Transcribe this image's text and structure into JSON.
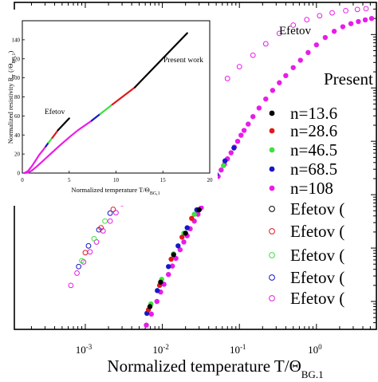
{
  "chart_data": [
    {
      "type": "scatter",
      "panel": "main",
      "xlabel": "Normalized temperature T/Θ",
      "xlabel_sub": "BG,1",
      "x_scale": "log",
      "xlim": [
        0.00012,
        6
      ],
      "y_scale": "log",
      "ylim": [
        3e-05,
        40
      ],
      "x_ticks": [
        0.001,
        0.01,
        0.1,
        1
      ],
      "x_tick_labels": [
        {
          "base": "10",
          "exp": "-3"
        },
        {
          "base": "10",
          "exp": "-2"
        },
        {
          "base": "10",
          "exp": "-1"
        },
        {
          "base": "10",
          "exp": "0"
        }
      ],
      "annotation": "Efetov",
      "legend": {
        "title": "Present",
        "placement": "right",
        "entries": [
          {
            "label": "n=13.6",
            "color": "#000000",
            "filled": true
          },
          {
            "label": "n=28.6",
            "color": "#e0191c",
            "filled": true
          },
          {
            "label": "n=46.5",
            "color": "#3fe03f",
            "filled": true
          },
          {
            "label": "n=68.5",
            "color": "#1717c8",
            "filled": true
          },
          {
            "label": "n=108",
            "color": "#e81ce8",
            "filled": true
          },
          {
            "label": "Efetov (",
            "color": "#000000",
            "filled": false
          },
          {
            "label": "Efetov (",
            "color": "#e0191c",
            "filled": false
          },
          {
            "label": "Efetov (",
            "color": "#3fe03f",
            "filled": false
          },
          {
            "label": "Efetov (",
            "color": "#1717c8",
            "filled": false
          },
          {
            "label": "Efetov (",
            "color": "#e81ce8",
            "filled": false
          }
        ]
      },
      "series": [
        {
          "name": "n=108",
          "color": "#e81ce8",
          "style": "filled",
          "x": [
            0.0062,
            0.0072,
            0.0085,
            0.0095,
            0.0105,
            0.012,
            0.0135,
            0.015,
            0.017,
            0.019,
            0.021,
            0.023,
            0.026,
            0.029,
            0.032,
            0.035,
            0.039,
            0.043,
            0.048,
            0.053,
            0.058,
            0.064,
            0.07,
            0.078,
            0.086,
            0.095,
            0.105,
            0.115,
            0.13,
            0.15,
            0.18,
            0.22,
            0.27,
            0.33,
            0.4,
            0.5,
            0.62,
            0.78,
            1.0,
            1.3,
            1.7,
            2.2,
            2.8,
            3.5,
            4.3,
            5.2
          ],
          "y": [
            3.6e-05,
            5.8e-05,
            0.0001,
            0.00015,
            0.00021,
            0.00032,
            0.00046,
            0.00064,
            0.00093,
            0.0013,
            0.0017,
            0.0023,
            0.0032,
            0.0043,
            0.0057,
            0.0073,
            0.0098,
            0.013,
            0.017,
            0.022,
            0.029,
            0.037,
            0.047,
            0.061,
            0.078,
            0.1,
            0.13,
            0.16,
            0.21,
            0.29,
            0.42,
            0.62,
            0.9,
            1.25,
            1.7,
            2.4,
            3.3,
            4.6,
            6.4,
            8.8,
            11.5,
            14.0,
            16.0,
            17.5,
            18.8,
            20.0
          ]
        },
        {
          "name": "n=68.5",
          "color": "#1717c8",
          "style": "filled",
          "x": [
            0.0063,
            0.0086,
            0.012,
            0.016,
            0.021,
            0.028,
            0.037,
            0.05,
            0.065,
            0.085
          ],
          "y": [
            6e-05,
            0.00016,
            0.00045,
            0.0011,
            0.0024,
            0.0052,
            0.011,
            0.024,
            0.043,
            0.075
          ]
        },
        {
          "name": "n=46.5",
          "color": "#3fe03f",
          "style": "filled",
          "x": [
            0.0071,
            0.0098,
            0.014,
            0.019,
            0.026,
            0.034,
            0.046,
            0.062
          ],
          "y": [
            9e-05,
            0.00026,
            0.00078,
            0.0019,
            0.0043,
            0.0085,
            0.018,
            0.035
          ]
        },
        {
          "name": "n=28.6",
          "color": "#e0191c",
          "style": "filled",
          "x": [
            0.0066,
            0.0092,
            0.013,
            0.018,
            0.024,
            0.032,
            0.043
          ],
          "y": [
            7e-05,
            0.0002,
            0.00062,
            0.0016,
            0.0036,
            0.0074,
            0.015
          ]
        },
        {
          "name": "n=13.6",
          "color": "#000000",
          "style": "filled",
          "x": [
            0.0069,
            0.0095,
            0.014,
            0.02,
            0.03,
            0.045
          ],
          "y": [
            8e-05,
            0.00023,
            0.00075,
            0.0019,
            0.0052,
            0.0155
          ]
        },
        {
          "name": "Efetov (",
          "color": "#e81ce8",
          "style": "hollow",
          "x": [
            0.00065,
            0.00078,
            0.00095,
            0.00115,
            0.0014,
            0.0017,
            0.0021,
            0.0025,
            0.003,
            0.0036,
            0.0044,
            0.006,
            0.009,
            0.014,
            0.02,
            0.03,
            0.045,
            0.07,
            0.1,
            0.15,
            0.22,
            0.33,
            0.5,
            0.75,
            1.1,
            1.6,
            2.4,
            3.4,
            4.4
          ],
          "y": [
            0.0002,
            0.00034,
            0.00055,
            0.00085,
            0.0013,
            0.0021,
            0.0032,
            0.0046,
            0.0068,
            0.0098,
            0.014,
            0.024,
            0.055,
            0.12,
            0.22,
            0.42,
            0.78,
            1.5,
            2.5,
            4.1,
            6.7,
            10.5,
            15.0,
            19.0,
            22.5,
            25.5,
            28.0,
            29.5,
            30.5
          ]
        },
        {
          "name": "Efetov (",
          "color": "#1717c8",
          "style": "hollow",
          "x": [
            0.00082,
            0.0011,
            0.0015,
            0.0021
          ],
          "y": [
            0.00045,
            0.0011,
            0.0022,
            0.0045
          ]
        },
        {
          "name": "Efetov (",
          "color": "#3fe03f",
          "style": "hollow",
          "x": [
            0.0009,
            0.0013,
            0.0018
          ],
          "y": [
            0.00058,
            0.0015,
            0.0032
          ]
        },
        {
          "name": "Efetov (",
          "color": "#e0191c",
          "style": "hollow",
          "x": [
            0.001,
            0.0016,
            0.0023
          ],
          "y": [
            0.00082,
            0.0024,
            0.0053
          ]
        },
        {
          "name": "Efetov (",
          "color": "#000000",
          "style": "hollow",
          "x": [
            0.0027,
            0.0032,
            0.0038
          ],
          "y": [
            0.0078,
            0.011,
            0.016
          ]
        }
      ]
    },
    {
      "type": "line",
      "panel": "inset",
      "xlabel": "Normalized temperature T/Θ",
      "xlabel_sub": "BG,1",
      "ylabel": "Normalized resistivity R",
      "ylabel_sub": "T",
      "ylabel_tail": "/Θ",
      "ylabel_tail_sub": "BG,1",
      "ylabel_end": ")",
      "xlim": [
        0,
        20
      ],
      "ylim": [
        0,
        160
      ],
      "x_ticks": [
        0,
        5,
        10,
        15,
        20
      ],
      "y_ticks": [
        0,
        20,
        40,
        60,
        80,
        100,
        120,
        140
      ],
      "tick_labels_x": [
        "0",
        "5",
        "10",
        "15",
        "20"
      ],
      "tick_labels_y": [
        "0",
        "20",
        "40",
        "60",
        "80",
        "100",
        "120",
        "140"
      ],
      "annotations": [
        "Efetov",
        "Present work"
      ],
      "series": [
        {
          "label": "Present work",
          "segments": [
            {
              "color": "#e81ce8",
              "x": [
                0.2,
                0.6,
                1.0,
                1.5,
                2.0,
                2.5,
                3.0,
                4.0,
                5.0,
                6.0,
                7.4
              ],
              "y": [
                0,
                0.5,
                2.5,
                6.5,
                11.0,
                15.5,
                20.0,
                29.0,
                37.5,
                45.5,
                55.0
              ]
            },
            {
              "color": "#1717c8",
              "x": [
                7.4,
                8.3
              ],
              "y": [
                55.0,
                62.0
              ]
            },
            {
              "color": "#3fe03f",
              "x": [
                8.3,
                9.6
              ],
              "y": [
                62.0,
                72.0
              ]
            },
            {
              "color": "#e0191c",
              "x": [
                9.6,
                12.0
              ],
              "y": [
                72.0,
                90.0
              ]
            },
            {
              "color": "#000000",
              "x": [
                12.0,
                17.6
              ],
              "y": [
                90.0,
                147.0
              ]
            }
          ]
        },
        {
          "label": "Efetov",
          "segments": [
            {
              "color": "#e81ce8",
              "x": [
                0.2,
                0.6,
                1.0,
                1.4,
                1.8,
                2.2,
                2.5
              ],
              "y": [
                0,
                2.0,
                7.0,
                13.0,
                19.0,
                24.0,
                28.0
              ]
            },
            {
              "color": "#1717c8",
              "x": [
                2.5,
                2.8
              ],
              "y": [
                28.0,
                32.0
              ]
            },
            {
              "color": "#3fe03f",
              "x": [
                2.8,
                3.2
              ],
              "y": [
                32.0,
                37.0
              ]
            },
            {
              "color": "#e0191c",
              "x": [
                3.2,
                3.8
              ],
              "y": [
                37.0,
                45.0
              ]
            },
            {
              "color": "#000000",
              "x": [
                3.8,
                5.0
              ],
              "y": [
                45.0,
                57.5
              ]
            }
          ]
        }
      ]
    }
  ]
}
